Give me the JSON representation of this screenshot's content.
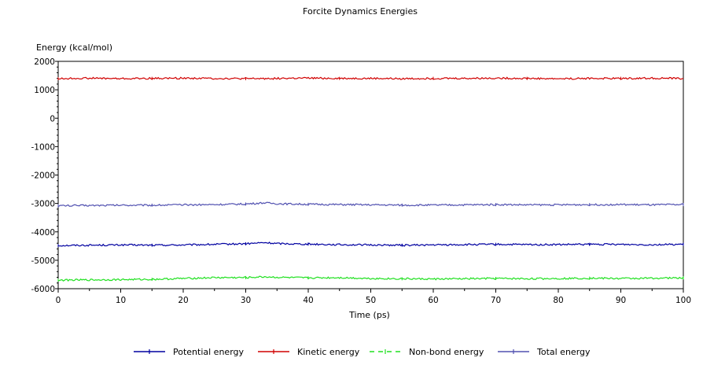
{
  "chart_data": {
    "type": "line",
    "title": "Forcite Dynamics Energies",
    "xlabel": "Time (ps)",
    "ylabel": "Energy (kcal/mol)",
    "xlim": [
      0,
      100
    ],
    "ylim": [
      -6000,
      2000
    ],
    "x_ticks": [
      0,
      10,
      20,
      30,
      40,
      50,
      60,
      70,
      80,
      90,
      100
    ],
    "y_ticks": [
      2000,
      1000,
      0,
      -1000,
      -2000,
      -3000,
      -4000,
      -5000,
      -6000
    ],
    "grid": false,
    "legend_position": "bottom",
    "series": [
      {
        "name": "Potential energy",
        "color": "#0000a0",
        "dash": "solid",
        "x": [
          0,
          5,
          10,
          15,
          20,
          25,
          30,
          33,
          35,
          40,
          45,
          50,
          55,
          60,
          65,
          70,
          75,
          80,
          85,
          90,
          95,
          100
        ],
        "y": [
          -4480,
          -4470,
          -4460,
          -4470,
          -4460,
          -4440,
          -4420,
          -4380,
          -4410,
          -4430,
          -4450,
          -4460,
          -4470,
          -4460,
          -4450,
          -4440,
          -4450,
          -4450,
          -4440,
          -4440,
          -4450,
          -4440
        ]
      },
      {
        "name": "Kinetic energy",
        "color": "#d00000",
        "dash": "solid",
        "x": [
          0,
          5,
          10,
          15,
          20,
          25,
          30,
          35,
          40,
          45,
          50,
          55,
          60,
          65,
          70,
          75,
          80,
          85,
          90,
          95,
          100
        ],
        "y": [
          1390,
          1410,
          1390,
          1400,
          1410,
          1400,
          1390,
          1400,
          1410,
          1400,
          1400,
          1390,
          1400,
          1400,
          1410,
          1400,
          1390,
          1400,
          1400,
          1410,
          1400
        ]
      },
      {
        "name": "Non-bond energy",
        "color": "#20e020",
        "dash": "dashed",
        "x": [
          0,
          5,
          10,
          15,
          20,
          25,
          30,
          33,
          35,
          40,
          45,
          50,
          55,
          60,
          65,
          70,
          75,
          80,
          85,
          90,
          95,
          100
        ],
        "y": [
          -5700,
          -5690,
          -5680,
          -5670,
          -5640,
          -5610,
          -5610,
          -5580,
          -5600,
          -5620,
          -5610,
          -5640,
          -5650,
          -5660,
          -5650,
          -5640,
          -5650,
          -5640,
          -5630,
          -5640,
          -5630,
          -5620
        ]
      },
      {
        "name": "Total energy",
        "color": "#5050b0",
        "dash": "solid",
        "x": [
          0,
          5,
          10,
          15,
          20,
          25,
          30,
          33,
          35,
          40,
          45,
          50,
          55,
          60,
          65,
          70,
          75,
          80,
          85,
          90,
          95,
          100
        ],
        "y": [
          -3080,
          -3070,
          -3060,
          -3060,
          -3050,
          -3040,
          -3020,
          -2980,
          -3010,
          -3030,
          -3040,
          -3050,
          -3060,
          -3060,
          -3050,
          -3040,
          -3050,
          -3050,
          -3040,
          -3040,
          -3050,
          -3040
        ]
      }
    ]
  }
}
